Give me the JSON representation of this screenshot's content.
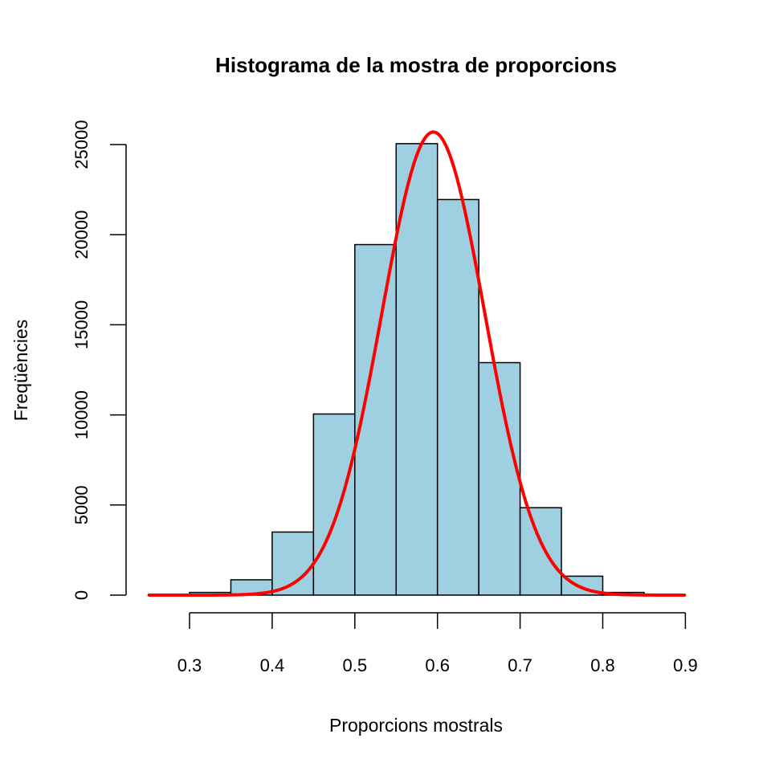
{
  "chart_data": {
    "type": "bar",
    "title": "Histograma de la mostra de proporcions",
    "xlabel": "Proporcions mostrals",
    "ylabel": "Freqüències",
    "xlim": [
      0.3,
      0.9
    ],
    "ylim": [
      0,
      25000
    ],
    "x_ticks": [
      "0.3",
      "0.4",
      "0.5",
      "0.6",
      "0.7",
      "0.8",
      "0.9"
    ],
    "y_ticks": [
      "0",
      "5000",
      "10000",
      "15000",
      "20000",
      "25000"
    ],
    "bin_edges": [
      0.25,
      0.3,
      0.35,
      0.4,
      0.45,
      0.5,
      0.55,
      0.6,
      0.65,
      0.7,
      0.75,
      0.8,
      0.85,
      0.9
    ],
    "values": [
      10,
      150,
      850,
      3500,
      10050,
      19450,
      25050,
      21950,
      12900,
      4850,
      1050,
      150,
      10
    ],
    "bar_color": "#9fd0e1",
    "bar_stroke": "#000000",
    "curve": {
      "type": "normal-density",
      "mean": 0.595,
      "sd": 0.0625,
      "peak": 25700,
      "x_range": [
        0.25,
        0.9
      ],
      "color": "#ff0000"
    },
    "grid": false,
    "legend": "none"
  }
}
